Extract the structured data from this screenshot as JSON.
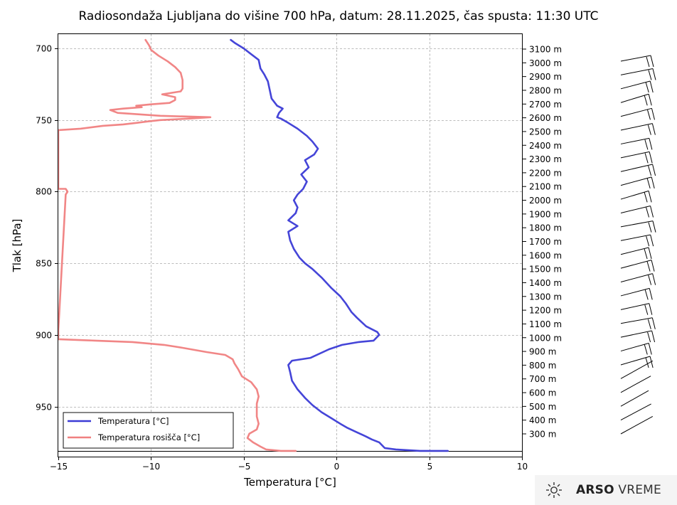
{
  "chart_data": {
    "type": "line",
    "title": "Radiosondaža Ljubljana do višine 700 hPa, datum: 28.11.2025, čas spusta: 11:30 UTC",
    "xlabel": "Temperatura [°C]",
    "ylabel": "Tlak [hPa]",
    "xlim": [
      -15,
      10
    ],
    "ylim": [
      985,
      690
    ],
    "x_ticks": [
      -15,
      -10,
      -5,
      0,
      5,
      10
    ],
    "x_tick_labels": [
      "−15",
      "−10",
      "−5",
      "0",
      "5",
      "10"
    ],
    "y_ticks": [
      700,
      750,
      800,
      850,
      900,
      950
    ],
    "y_tick_labels": [
      "700",
      "750",
      "800",
      "850",
      "900",
      "950"
    ],
    "grid": true,
    "legend_position": "bottom-left",
    "surface_pressure": 981,
    "altitude_labels": [
      "3100 m",
      "3000 m",
      "2900 m",
      "2800 m",
      "2700 m",
      "2600 m",
      "2500 m",
      "2400 m",
      "2300 m",
      "2200 m",
      "2100 m",
      "2000 m",
      "1900 m",
      "1800 m",
      "1700 m",
      "1600 m",
      "1500 m",
      "1400 m",
      "1300 m",
      "1200 m",
      "1100 m",
      "1000 m",
      "900 m",
      "800 m",
      "700 m",
      "600 m",
      "500 m",
      "400 m",
      "300 m"
    ],
    "series": [
      {
        "name": "Temperatura [°C]",
        "color": "#3b3bd6",
        "points": [
          [
            6.0,
            981
          ],
          [
            4.5,
            981
          ],
          [
            3.2,
            980
          ],
          [
            2.6,
            979
          ],
          [
            2.3,
            975
          ],
          [
            1.9,
            973
          ],
          [
            1.6,
            971
          ],
          [
            1.1,
            968
          ],
          [
            0.6,
            965
          ],
          [
            0.2,
            962
          ],
          [
            -0.3,
            958
          ],
          [
            -0.8,
            954
          ],
          [
            -1.3,
            949
          ],
          [
            -1.7,
            944
          ],
          [
            -2.1,
            938
          ],
          [
            -2.4,
            932
          ],
          [
            -2.5,
            926
          ],
          [
            -2.6,
            921
          ],
          [
            -2.4,
            918
          ],
          [
            -1.4,
            916
          ],
          [
            -0.4,
            910
          ],
          [
            0.3,
            907
          ],
          [
            1.2,
            905
          ],
          [
            2.0,
            904
          ],
          [
            2.3,
            900
          ],
          [
            2.2,
            898
          ],
          [
            1.6,
            894
          ],
          [
            1.1,
            888
          ],
          [
            0.8,
            884
          ],
          [
            0.5,
            878
          ],
          [
            0.2,
            873
          ],
          [
            -0.3,
            867
          ],
          [
            -0.8,
            860
          ],
          [
            -1.3,
            854
          ],
          [
            -1.7,
            850
          ],
          [
            -2.0,
            846
          ],
          [
            -2.3,
            840
          ],
          [
            -2.5,
            834
          ],
          [
            -2.6,
            828
          ],
          [
            -2.1,
            824
          ],
          [
            -2.6,
            820
          ],
          [
            -2.2,
            815
          ],
          [
            -2.1,
            811
          ],
          [
            -2.3,
            806
          ],
          [
            -2.1,
            802
          ],
          [
            -1.8,
            798
          ],
          [
            -1.6,
            793
          ],
          [
            -1.9,
            788
          ],
          [
            -1.5,
            783
          ],
          [
            -1.7,
            778
          ],
          [
            -1.2,
            774
          ],
          [
            -1.0,
            770
          ],
          [
            -1.3,
            765
          ],
          [
            -1.6,
            761
          ],
          [
            -2.1,
            756
          ],
          [
            -2.6,
            752
          ],
          [
            -3.0,
            749
          ],
          [
            -3.2,
            748
          ],
          [
            -3.1,
            745
          ],
          [
            -2.9,
            742
          ],
          [
            -3.2,
            740
          ],
          [
            -3.5,
            735
          ],
          [
            -3.6,
            729
          ],
          [
            -3.7,
            723
          ],
          [
            -3.9,
            718
          ],
          [
            -4.1,
            714
          ],
          [
            -4.2,
            708
          ],
          [
            -4.6,
            704
          ],
          [
            -5.0,
            700
          ],
          [
            -5.5,
            696
          ],
          [
            -5.7,
            694
          ]
        ]
      },
      {
        "name": "Temperatura rosišča [°C]",
        "color": "#f08080",
        "points": [
          [
            -2.2,
            981
          ],
          [
            -3.0,
            981
          ],
          [
            -3.8,
            980
          ],
          [
            -4.1,
            978
          ],
          [
            -4.5,
            975
          ],
          [
            -4.8,
            972
          ],
          [
            -4.7,
            969
          ],
          [
            -4.3,
            966
          ],
          [
            -4.2,
            962
          ],
          [
            -4.3,
            957
          ],
          [
            -4.3,
            952
          ],
          [
            -4.3,
            948
          ],
          [
            -4.2,
            943
          ],
          [
            -4.3,
            938
          ],
          [
            -4.6,
            933
          ],
          [
            -5.1,
            929
          ],
          [
            -5.3,
            924
          ],
          [
            -5.5,
            920
          ],
          [
            -5.6,
            917
          ],
          [
            -6.0,
            914
          ],
          [
            -7.0,
            912
          ],
          [
            -8.3,
            909
          ],
          [
            -9.3,
            907
          ],
          [
            -11.0,
            905
          ],
          [
            -13.0,
            904
          ],
          [
            -15.0,
            903
          ],
          [
            -15.0,
            897
          ],
          [
            -14.6,
            802
          ],
          [
            -14.5,
            800
          ],
          [
            -14.6,
            798
          ],
          [
            -15.0,
            798
          ],
          [
            -15.0,
            757
          ],
          [
            -13.8,
            756
          ],
          [
            -12.6,
            754
          ],
          [
            -11.5,
            753
          ],
          [
            -10.8,
            752
          ],
          [
            -10.2,
            751
          ],
          [
            -9.5,
            750
          ],
          [
            -8.0,
            749
          ],
          [
            -6.8,
            748
          ],
          [
            -9.5,
            747
          ],
          [
            -11.8,
            745
          ],
          [
            -12.2,
            743
          ],
          [
            -11.5,
            742
          ],
          [
            -10.5,
            741
          ],
          [
            -10.8,
            740
          ],
          [
            -10.0,
            739
          ],
          [
            -9.0,
            738
          ],
          [
            -8.7,
            736
          ],
          [
            -8.7,
            734
          ],
          [
            -9.4,
            732
          ],
          [
            -8.4,
            730
          ],
          [
            -8.3,
            728
          ],
          [
            -8.3,
            722
          ],
          [
            -8.4,
            717
          ],
          [
            -8.7,
            713
          ],
          [
            -9.1,
            709
          ],
          [
            -9.6,
            705
          ],
          [
            -10.0,
            701
          ],
          [
            -10.1,
            698
          ],
          [
            -10.3,
            694
          ]
        ]
      }
    ],
    "legend": [
      "Temperatura [°C]",
      "Temperatura rosišča [°C]"
    ],
    "wind_barbs_levels": [
      3000,
      2900,
      2800,
      2700,
      2600,
      2500,
      2400,
      2300,
      2200,
      2100,
      2000,
      1900,
      1800,
      1700,
      1600,
      1500,
      1400,
      1300,
      1200,
      1100,
      1000,
      900,
      800,
      700,
      600,
      500,
      400,
      300
    ]
  },
  "branding": {
    "name_bold": "ARSO",
    "name_light": "VREME"
  }
}
